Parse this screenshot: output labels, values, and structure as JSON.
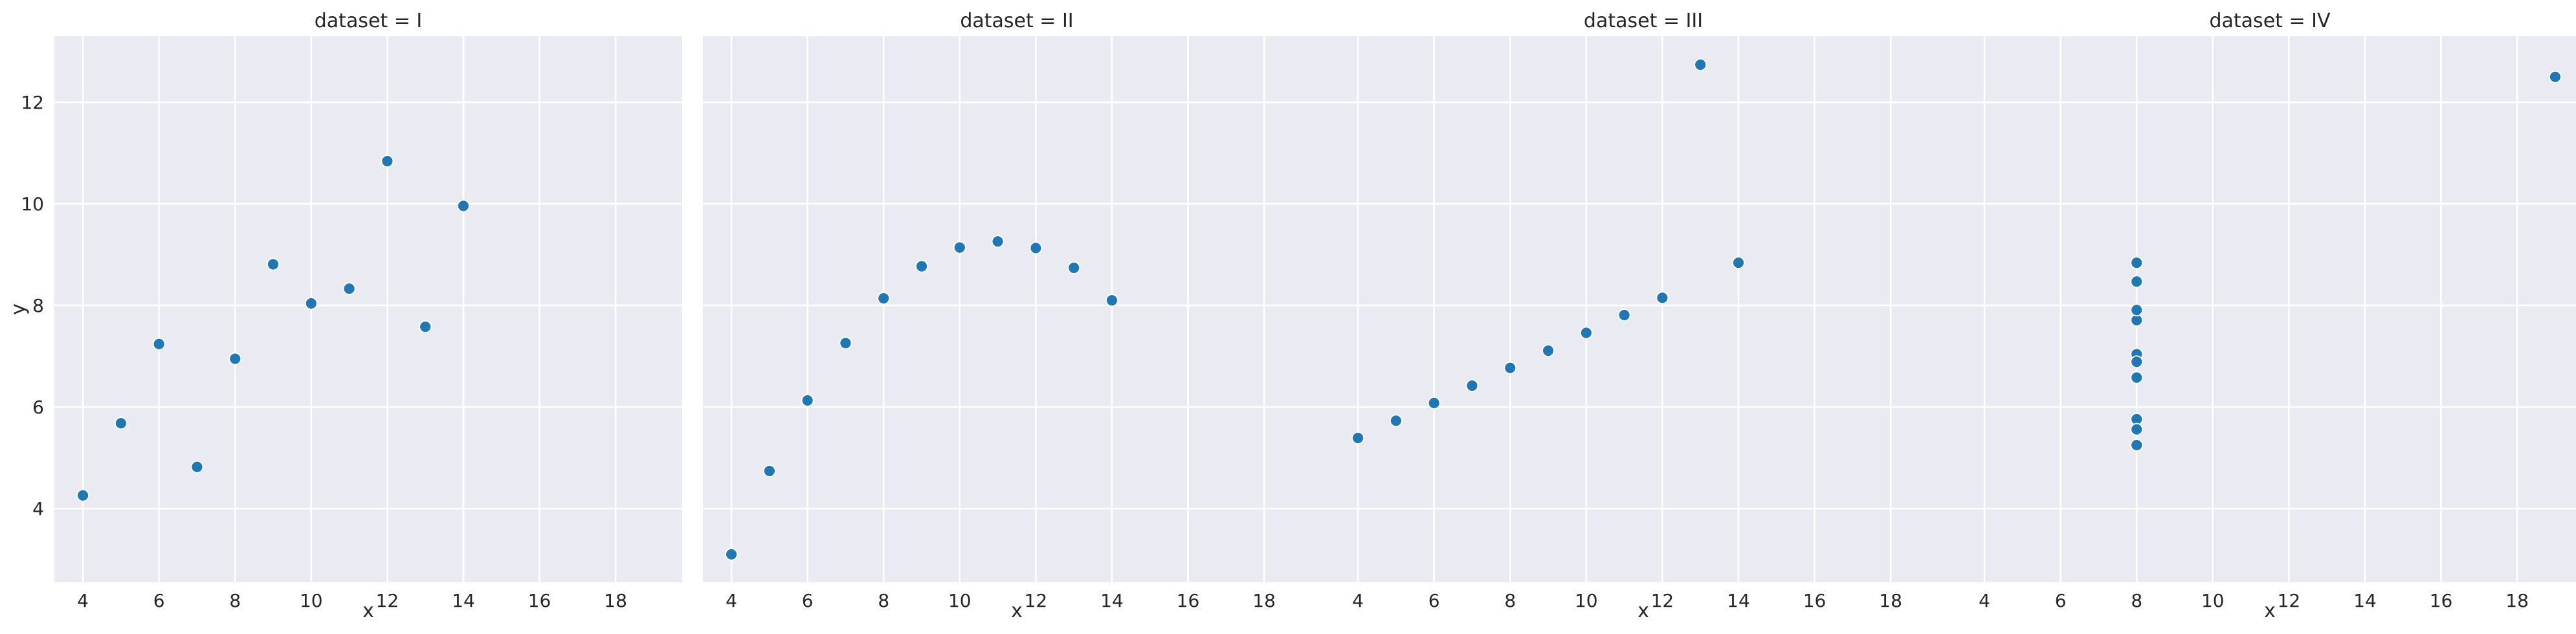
{
  "chart_data": [
    {
      "type": "scatter",
      "title": "dataset = I",
      "xlabel": "x",
      "ylabel": "y",
      "xlim": [
        3.25,
        19.75
      ],
      "ylim": [
        2.55,
        13.3
      ],
      "xticks": [
        "4",
        "6",
        "8",
        "10",
        "12",
        "14",
        "16",
        "18"
      ],
      "yticks": [
        "4",
        "6",
        "8",
        "10",
        "12"
      ],
      "grid": true,
      "points": [
        {
          "x": 10,
          "y": 8.04
        },
        {
          "x": 8,
          "y": 6.95
        },
        {
          "x": 13,
          "y": 7.58
        },
        {
          "x": 9,
          "y": 8.81
        },
        {
          "x": 11,
          "y": 8.33
        },
        {
          "x": 14,
          "y": 9.96
        },
        {
          "x": 6,
          "y": 7.24
        },
        {
          "x": 4,
          "y": 4.26
        },
        {
          "x": 12,
          "y": 10.84
        },
        {
          "x": 7,
          "y": 4.82
        },
        {
          "x": 5,
          "y": 5.68
        }
      ]
    },
    {
      "type": "scatter",
      "title": "dataset = II",
      "xlabel": "x",
      "ylabel": "",
      "xlim": [
        3.25,
        19.75
      ],
      "ylim": [
        2.55,
        13.3
      ],
      "xticks": [
        "4",
        "6",
        "8",
        "10",
        "12",
        "14",
        "16",
        "18"
      ],
      "yticks": [
        "4",
        "6",
        "8",
        "10",
        "12"
      ],
      "grid": true,
      "points": [
        {
          "x": 10,
          "y": 9.14
        },
        {
          "x": 8,
          "y": 8.14
        },
        {
          "x": 13,
          "y": 8.74
        },
        {
          "x": 9,
          "y": 8.77
        },
        {
          "x": 11,
          "y": 9.26
        },
        {
          "x": 14,
          "y": 8.1
        },
        {
          "x": 6,
          "y": 6.13
        },
        {
          "x": 4,
          "y": 3.1
        },
        {
          "x": 12,
          "y": 9.13
        },
        {
          "x": 7,
          "y": 7.26
        },
        {
          "x": 5,
          "y": 4.74
        }
      ]
    },
    {
      "type": "scatter",
      "title": "dataset = III",
      "xlabel": "x",
      "ylabel": "",
      "xlim": [
        3.25,
        19.75
      ],
      "ylim": [
        2.55,
        13.3
      ],
      "xticks": [
        "4",
        "6",
        "8",
        "10",
        "12",
        "14",
        "16",
        "18"
      ],
      "yticks": [
        "4",
        "6",
        "8",
        "10",
        "12"
      ],
      "grid": true,
      "points": [
        {
          "x": 10,
          "y": 7.46
        },
        {
          "x": 8,
          "y": 6.77
        },
        {
          "x": 13,
          "y": 12.74
        },
        {
          "x": 9,
          "y": 7.11
        },
        {
          "x": 11,
          "y": 7.81
        },
        {
          "x": 14,
          "y": 8.84
        },
        {
          "x": 6,
          "y": 6.08
        },
        {
          "x": 4,
          "y": 5.39
        },
        {
          "x": 12,
          "y": 8.15
        },
        {
          "x": 7,
          "y": 6.42
        },
        {
          "x": 5,
          "y": 5.73
        }
      ]
    },
    {
      "type": "scatter",
      "title": "dataset = IV",
      "xlabel": "x",
      "ylabel": "",
      "xlim": [
        3.25,
        19.75
      ],
      "ylim": [
        2.55,
        13.3
      ],
      "xticks": [
        "4",
        "6",
        "8",
        "10",
        "12",
        "14",
        "16",
        "18"
      ],
      "yticks": [
        "4",
        "6",
        "8",
        "10",
        "12"
      ],
      "grid": true,
      "points": [
        {
          "x": 8,
          "y": 6.58
        },
        {
          "x": 8,
          "y": 5.76
        },
        {
          "x": 8,
          "y": 7.71
        },
        {
          "x": 8,
          "y": 8.84
        },
        {
          "x": 8,
          "y": 8.47
        },
        {
          "x": 8,
          "y": 7.04
        },
        {
          "x": 8,
          "y": 5.25
        },
        {
          "x": 19,
          "y": 12.5
        },
        {
          "x": 8,
          "y": 5.56
        },
        {
          "x": 8,
          "y": 7.91
        },
        {
          "x": 8,
          "y": 6.89
        }
      ]
    }
  ],
  "colors": {
    "point": "#1f77b4",
    "panel_background": "#eaeaf2",
    "grid": "#ffffff",
    "text": "#262626"
  }
}
